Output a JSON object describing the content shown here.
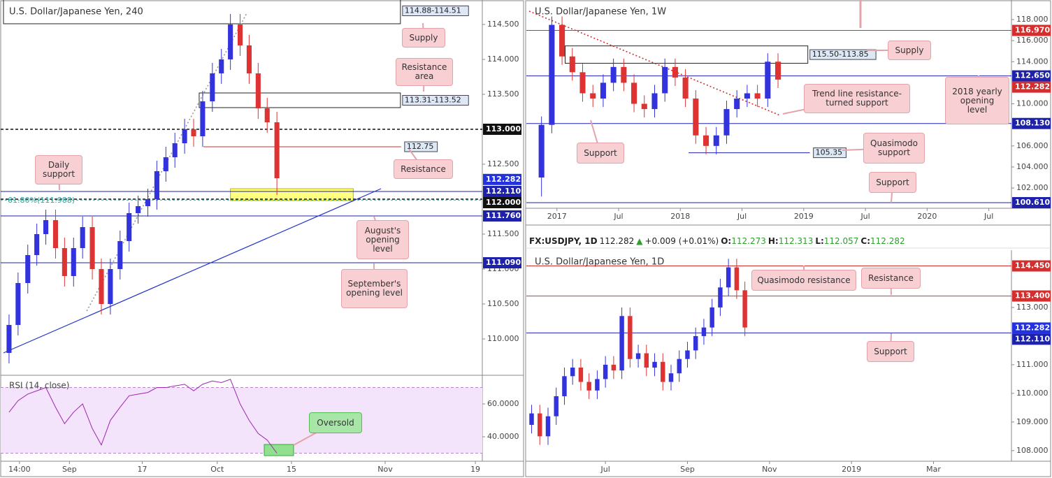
{
  "chart_data": [
    {
      "type": "candlestick",
      "title": "U.S. Dollar/Japanese Yen, 240",
      "up_color": "#3333dd",
      "down_color": "#dd3333",
      "xlim": [
        0,
        69
      ],
      "ylim": [
        109.5,
        114.85
      ],
      "xticks": [
        {
          "value": 2.3,
          "label": "14:00"
        },
        {
          "value": 9.5,
          "label": "Sep"
        },
        {
          "value": 20,
          "label": "17"
        },
        {
          "value": 30.8,
          "label": "Oct"
        },
        {
          "value": 41.5,
          "label": "15"
        },
        {
          "value": 55,
          "label": "Nov"
        },
        {
          "value": 68,
          "label": "19"
        }
      ],
      "yticks": [
        {
          "value": 114.5,
          "label": "114.500"
        },
        {
          "value": 114,
          "label": "114.000"
        },
        {
          "value": 113.5,
          "label": "113.500"
        },
        {
          "value": 112.5,
          "label": "112.500"
        },
        {
          "value": 111.5,
          "label": "111.500"
        },
        {
          "value": 111,
          "label": "111.000"
        },
        {
          "value": 110.5,
          "label": "110.500"
        },
        {
          "value": 110,
          "label": "110.000"
        }
      ],
      "x": [
        0.8,
        2.1,
        3.5,
        4.8,
        6.1,
        7.5,
        8.8,
        10.1,
        11.4,
        12.8,
        14.1,
        15.4,
        16.8,
        18.1,
        19.4,
        20.8,
        22.1,
        23.4,
        24.7,
        26.1,
        27.4,
        28.7,
        30.1,
        31.4,
        32.7,
        34.1,
        35.4,
        36.7,
        38.0,
        39.4
      ],
      "open": [
        109.8,
        110.2,
        110.8,
        111.2,
        111.5,
        111.7,
        111.3,
        110.9,
        111.3,
        111.6,
        111.0,
        110.5,
        111.0,
        111.4,
        111.8,
        111.9,
        112.0,
        112.4,
        112.6,
        112.8,
        113.0,
        112.9,
        113.4,
        113.8,
        114.0,
        114.5,
        114.2,
        113.8,
        113.3,
        113.1
      ],
      "high": [
        110.35,
        110.95,
        111.35,
        111.65,
        111.85,
        111.85,
        111.45,
        111.45,
        111.75,
        111.75,
        111.15,
        111.15,
        111.55,
        111.95,
        112.05,
        112.15,
        112.55,
        112.75,
        112.95,
        113.15,
        113.15,
        113.55,
        113.95,
        114.15,
        114.65,
        114.65,
        114.35,
        113.95,
        113.45,
        113.25
      ],
      "low": [
        109.65,
        110.05,
        110.65,
        111.05,
        111.35,
        111.15,
        110.75,
        110.75,
        111.15,
        110.85,
        110.35,
        110.35,
        110.85,
        111.25,
        111.65,
        111.75,
        111.85,
        112.25,
        112.45,
        112.65,
        112.75,
        112.75,
        113.25,
        113.65,
        113.85,
        114.05,
        113.65,
        113.15,
        112.95,
        112.06
      ],
      "close": [
        110.2,
        110.8,
        111.2,
        111.5,
        111.7,
        111.3,
        110.9,
        111.3,
        111.6,
        111.0,
        110.5,
        111.0,
        111.4,
        111.8,
        111.9,
        112.0,
        112.4,
        112.6,
        112.8,
        113.0,
        112.9,
        113.4,
        113.8,
        114.0,
        114.5,
        114.2,
        113.8,
        113.3,
        113.1,
        112.3
      ],
      "levels": [
        {
          "value": 113,
          "label": "113.000",
          "color": "#111111",
          "style": "dashed",
          "tag": "axis",
          "line": true
        },
        {
          "value": 112.75,
          "label": "112.75",
          "color": "#d32f2f",
          "style": "solid",
          "tag": "box",
          "line": true,
          "start": 28.8,
          "end": 57.3
        },
        {
          "value": 112.282,
          "label": "112.282",
          "color": "#2233dd",
          "style": "solid",
          "tag": "axis",
          "line": false
        },
        {
          "value": 112.11,
          "label": "112.110",
          "color": "#1e22aa",
          "style": "solid",
          "tag": "axis",
          "line": true
        },
        {
          "value": 112,
          "label": "112.000",
          "color": "#111111",
          "style": "dashed",
          "tag": "axis",
          "line": true
        },
        {
          "value": 111.76,
          "label": "111.760",
          "color": "#1e22aa",
          "style": "solid",
          "tag": "axis",
          "line": true
        },
        {
          "value": 111.09,
          "label": "111.090",
          "color": "#1e22aa",
          "style": "solid",
          "tag": "axis",
          "line": true
        }
      ],
      "fib": {
        "value": 111.988,
        "label": "61.80%(111.988)",
        "color": "#26a69a"
      },
      "zones": [
        {
          "range": [
            114.51,
            114.88
          ],
          "label": "114.88-114.51",
          "start": 0,
          "end": 57.2,
          "fill": "none",
          "stroke": "#222222"
        },
        {
          "range": [
            113.31,
            113.52
          ],
          "label": "113.31-113.52",
          "start": 28.2,
          "end": 57.2,
          "fill": "none",
          "stroke": "#222222"
        },
        {
          "range": [
            111.98,
            112.15
          ],
          "start": 32.7,
          "end": 50.4,
          "fill": "#ffff80",
          "stroke": "#b8b800"
        }
      ],
      "trendlines": [
        {
          "points": [
            [
              0,
              109.8
            ],
            [
              54.4,
              112.15
            ]
          ],
          "color": "#2233cc",
          "style": "solid"
        },
        {
          "points": [
            [
              12,
              110.4
            ],
            [
              35,
              114.65
            ]
          ],
          "color": "#999999",
          "style": "dotted"
        }
      ],
      "callouts": [
        "Supply",
        "Resistance area",
        "Resistance",
        "Daily support",
        "August's opening level",
        "September's opening level"
      ],
      "rsi": {
        "title": "RSI (14, close)",
        "color": "#9c27b0",
        "ylim": [
          25.1,
          76.2
        ],
        "bands": [
          70,
          30
        ],
        "yticks": [
          {
            "value": 60,
            "label": "60.0000"
          },
          {
            "value": 40,
            "label": "40.0000"
          }
        ],
        "values": [
          55,
          62,
          66,
          68,
          70,
          58,
          48,
          55,
          60,
          45,
          35,
          50,
          58,
          65,
          66,
          67,
          70,
          70,
          71,
          72,
          68,
          72,
          74,
          73,
          75,
          60,
          50,
          42,
          38,
          30
        ],
        "callouts": [
          "Oversold"
        ]
      }
    },
    {
      "type": "candlestick",
      "title": "U.S. Dollar/Japanese Yen, 1W",
      "up_color": "#3333dd",
      "down_color": "#dd3333",
      "xlim": [
        -2.7,
        44.2
      ],
      "ylim": [
        100.08,
        119.86
      ],
      "xticks": [
        {
          "value": 0,
          "label": "2017"
        },
        {
          "value": 6,
          "label": "Jul"
        },
        {
          "value": 12,
          "label": "2018"
        },
        {
          "value": 18,
          "label": "Jul"
        },
        {
          "value": 24,
          "label": "2019"
        },
        {
          "value": 30,
          "label": "Jul"
        },
        {
          "value": 36,
          "label": "2020"
        },
        {
          "value": 42,
          "label": "Jul"
        }
      ],
      "yticks": [
        {
          "value": 118,
          "label": "118.000"
        },
        {
          "value": 116,
          "label": "116.000"
        },
        {
          "value": 114,
          "label": "114.000"
        },
        {
          "value": 110,
          "label": "110.000"
        },
        {
          "value": 106,
          "label": "106.000"
        },
        {
          "value": 104,
          "label": "104.000"
        },
        {
          "value": 102,
          "label": "102.000"
        }
      ],
      "x": [
        -1.5,
        -0.5,
        0.5,
        1.5,
        2.5,
        3.5,
        4.5,
        5.5,
        6.5,
        7.5,
        8.5,
        9.5,
        10.5,
        11.5,
        12.5,
        13.5,
        14.5,
        15.5,
        16.5,
        17.5,
        18.5,
        19.5,
        20.5,
        21.5
      ],
      "open": [
        103,
        108,
        117.5,
        114.5,
        113,
        111,
        110.5,
        112,
        113.5,
        112,
        110,
        109.5,
        111,
        113.5,
        112.5,
        110.5,
        107,
        106,
        107,
        109.5,
        110.5,
        111,
        110.5,
        114
      ],
      "high": [
        108.8,
        118.3,
        118.3,
        115.3,
        113.8,
        111.8,
        112.8,
        114.3,
        114.3,
        112.8,
        110.8,
        111.8,
        114.3,
        114.3,
        113.3,
        111.3,
        107.8,
        107.8,
        110.3,
        111.3,
        111.8,
        111.8,
        114.8,
        114.8
      ],
      "low": [
        101.2,
        107.2,
        113.7,
        112.2,
        110.2,
        109.7,
        109.7,
        111.2,
        111.2,
        109.2,
        108.7,
        108.7,
        110.2,
        111.7,
        109.7,
        106.2,
        105.2,
        105.2,
        106.2,
        108.7,
        109.7,
        109.7,
        109.7,
        111.5
      ],
      "close": [
        108,
        117.5,
        114.5,
        113,
        111,
        110.5,
        112,
        113.5,
        112,
        110,
        109.5,
        111,
        113.5,
        112.5,
        110.5,
        107,
        106,
        107,
        109.5,
        110.5,
        111,
        110.5,
        114,
        112.3
      ],
      "levels": [
        {
          "value": 116.97,
          "label": "116.970",
          "color": "#d32f2f",
          "style": "solid",
          "tag": "axis",
          "line": true
        },
        {
          "value": 112.65,
          "label": "112.650",
          "color": "#1e22aa",
          "style": "solid",
          "tag": "axis",
          "line": true
        },
        {
          "value": 112.282,
          "label": "112.282",
          "color": "#d32f2f",
          "style": "solid",
          "tag": "axis",
          "line": false
        },
        {
          "value": 108.13,
          "label": "108.130",
          "color": "#1e22aa",
          "style": "solid",
          "tag": "axis",
          "line": true
        },
        {
          "value": 105.35,
          "label": "105.35",
          "color": "#1e22aa",
          "style": "solid",
          "tag": "box",
          "line": true,
          "start": 12.8,
          "end": 24.6
        },
        {
          "value": 100.61,
          "label": "100.610",
          "color": "#1e22aa",
          "style": "solid",
          "tag": "axis",
          "line": true
        }
      ],
      "zones": [
        {
          "range": [
            113.85,
            115.5
          ],
          "label": "115.50-113.85",
          "start": 0.8,
          "end": 24.4,
          "fill": "none",
          "stroke": "#222222"
        }
      ],
      "trendlines": [
        {
          "points": [
            [
              -2.7,
              118.8
            ],
            [
              21.7,
              108.9
            ]
          ],
          "color": "#d32f2f",
          "style": "dotted"
        }
      ],
      "callouts": [
        "Supply",
        "Trend line resistance-turned support",
        "2018 yearly opening level",
        "Support",
        "Quasimodo support",
        "Support"
      ]
    },
    {
      "type": "candlestick",
      "title": "U.S. Dollar/Japanese Yen, 1D",
      "header": {
        "symbol": "FX:USDJPY, 1D",
        "price": "112.282",
        "arrow": "▲",
        "change": "+0.009 (+0.01%)",
        "ohlc": [
          {
            "key": "O:",
            "value": "112.273"
          },
          {
            "key": "H:",
            "value": "112.313"
          },
          {
            "key": "L:",
            "value": "112.057"
          },
          {
            "key": "C:",
            "value": "112.282"
          }
        ]
      },
      "up_color": "#3333dd",
      "down_color": "#dd3333",
      "xlim": [
        -1.86,
        9.9
      ],
      "ylim": [
        107.63,
        115.0
      ],
      "xticks": [
        {
          "value": 0,
          "label": "Jul"
        },
        {
          "value": 2,
          "label": "Sep"
        },
        {
          "value": 4,
          "label": "Nov"
        },
        {
          "value": 6,
          "label": "2019"
        },
        {
          "value": 8,
          "label": "Mar"
        }
      ],
      "yticks": [
        {
          "value": 113,
          "label": "113.000"
        },
        {
          "value": 111,
          "label": "111.000"
        },
        {
          "value": 110,
          "label": "110.000"
        },
        {
          "value": 109,
          "label": "109.000"
        },
        {
          "value": 108,
          "label": "108.000"
        }
      ],
      "x": [
        -1.8,
        -1.6,
        -1.4,
        -1.2,
        -1.0,
        -0.8,
        -0.6,
        -0.4,
        -0.2,
        0,
        0.2,
        0.4,
        0.6,
        0.8,
        1.0,
        1.2,
        1.4,
        1.6,
        1.8,
        2.0,
        2.2,
        2.4,
        2.6,
        2.8,
        3.0,
        3.2,
        3.4
      ],
      "open": [
        108.9,
        109.3,
        108.5,
        109.2,
        109.9,
        110.6,
        110.9,
        110.4,
        110.1,
        110.5,
        111.0,
        110.8,
        112.7,
        111.2,
        111.4,
        110.9,
        111.1,
        110.4,
        110.7,
        111.2,
        111.5,
        112.0,
        112.3,
        113.0,
        113.7,
        114.4,
        113.6
      ],
      "high": [
        109.6,
        109.6,
        109.5,
        110.2,
        110.9,
        111.2,
        111.2,
        110.7,
        110.8,
        111.3,
        111.3,
        113.0,
        113.0,
        111.7,
        111.7,
        111.4,
        111.4,
        111.0,
        111.5,
        111.8,
        112.3,
        112.6,
        113.3,
        114.0,
        114.7,
        114.7,
        113.9
      ],
      "low": [
        108.6,
        108.2,
        108.2,
        108.9,
        109.6,
        110.3,
        110.1,
        109.8,
        109.8,
        110.2,
        110.5,
        110.5,
        110.9,
        110.9,
        110.6,
        110.6,
        110.1,
        110.1,
        110.4,
        110.9,
        111.2,
        111.7,
        112.0,
        112.7,
        113.4,
        113.3,
        112.0
      ],
      "close": [
        109.3,
        108.5,
        109.2,
        109.9,
        110.6,
        110.9,
        110.4,
        110.1,
        110.5,
        111.0,
        110.8,
        112.7,
        111.2,
        111.4,
        110.9,
        111.1,
        110.4,
        110.7,
        111.2,
        111.5,
        112.0,
        112.3,
        113.0,
        113.7,
        114.4,
        113.6,
        112.3
      ],
      "levels": [
        {
          "value": 114.45,
          "label": "114.450",
          "color": "#d32f2f",
          "style": "solid",
          "tag": "axis",
          "line": true
        },
        {
          "value": 113.4,
          "label": "113.400",
          "color": "#d32f2f",
          "style": "solid",
          "tag": "axis",
          "line": true
        },
        {
          "value": 112.282,
          "label": "112.282",
          "color": "#2233dd",
          "style": "solid",
          "tag": "axis",
          "line": false
        },
        {
          "value": 112.11,
          "label": "112.110",
          "color": "#1e22aa",
          "style": "solid",
          "tag": "axis",
          "line": true
        }
      ],
      "zones": [],
      "trendlines": [],
      "callouts": [
        "Quasimodo resistance",
        "Resistance",
        "Support"
      ]
    }
  ]
}
